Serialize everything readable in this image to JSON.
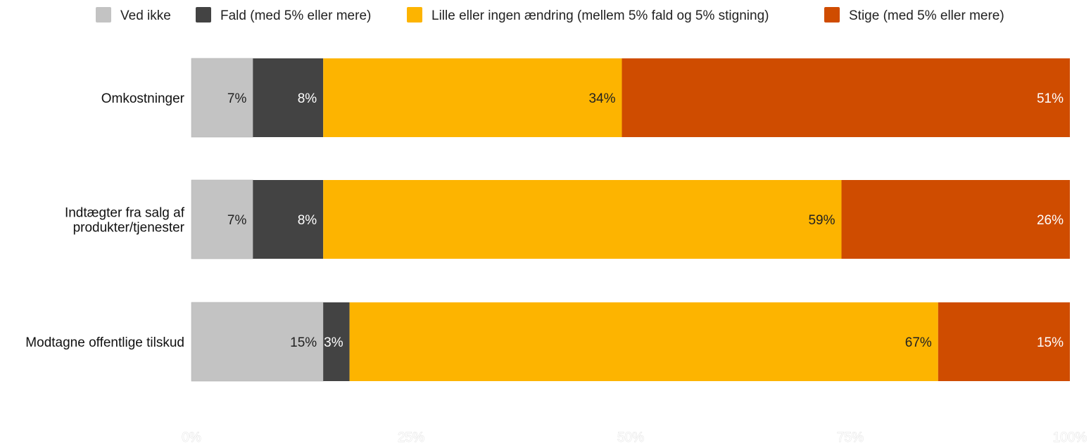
{
  "chart_data": {
    "type": "bar",
    "orientation": "horizontal",
    "stacked": "percent",
    "categories": [
      [
        "Omkostninger"
      ],
      [
        "Indtægter fra salg af",
        "produkter/tjenester"
      ],
      [
        "Modtagne offentlige tilskud"
      ]
    ],
    "series": [
      {
        "name": "Ved ikke",
        "color": "#c3c3c3",
        "label_color": "#222222",
        "values": [
          7,
          7,
          15
        ],
        "labels": [
          "7%",
          "7%",
          "15%"
        ]
      },
      {
        "name": "Fald (med 5% eller mere)",
        "color": "#434343",
        "label_color": "#ffffff",
        "values": [
          8,
          8,
          3
        ],
        "labels": [
          "8%",
          "8%",
          "3%"
        ]
      },
      {
        "name": "Lille eller ingen ændring (mellem 5% fald og 5% stigning)",
        "color": "#fdb400",
        "label_color": "#222222",
        "values": [
          34,
          59,
          67
        ],
        "labels": [
          "34%",
          "59%",
          "67%"
        ]
      },
      {
        "name": "Stige (med 5% eller mere)",
        "color": "#cf4c00",
        "label_color": "#ffffff",
        "values": [
          51,
          26,
          15
        ],
        "labels": [
          "51%",
          "26%",
          "15%"
        ]
      }
    ],
    "xlim": [
      0,
      100
    ],
    "x_ticks": [
      "0%",
      "25%",
      "50%",
      "75%",
      "100%"
    ],
    "legend_position": "top",
    "grid": false,
    "title": "",
    "xlabel": "",
    "ylabel": ""
  }
}
